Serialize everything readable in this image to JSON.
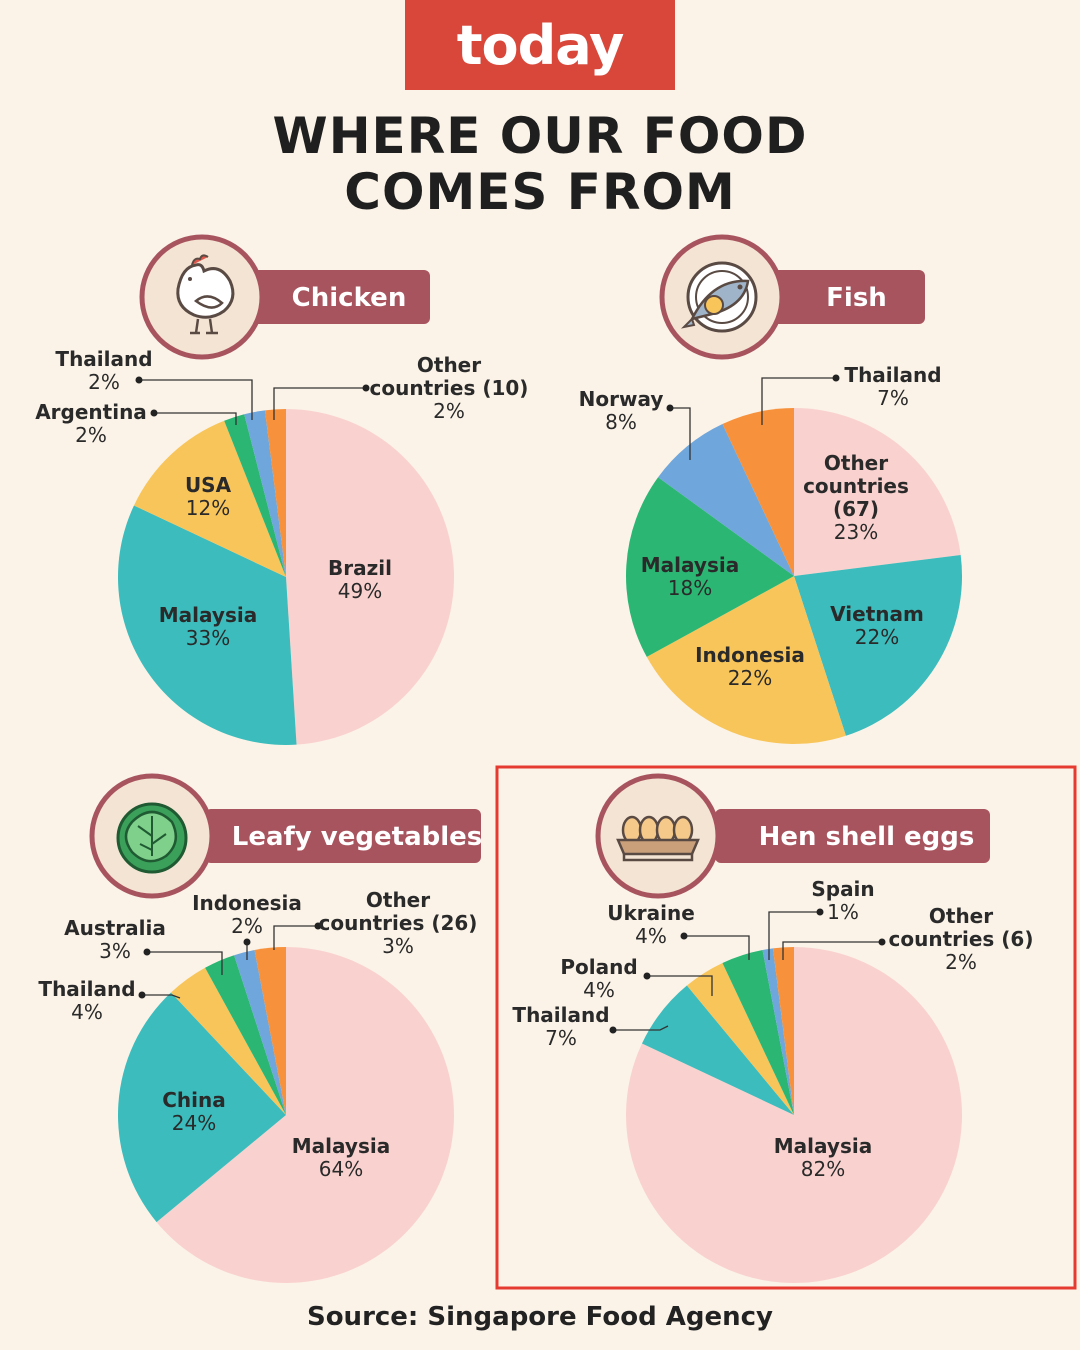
{
  "header": {
    "logo_text": "today",
    "title_line1": "WHERE OUR FOOD",
    "title_line2": "COMES FROM"
  },
  "footer": {
    "source": "Source: Singapore Food Agency"
  },
  "colors": {
    "pink": "#f9d2cf",
    "teal": "#3cbcbc",
    "yellow": "#f8c55a",
    "green": "#2bb673",
    "blue": "#6fa6db",
    "orange": "#f7913c",
    "banner": "#a8545f",
    "highlight": "#e53a2f"
  },
  "chart_data": [
    {
      "type": "pie",
      "title": "Chicken",
      "icon": "chicken-icon",
      "slices": [
        {
          "label": "Brazil",
          "value": 49,
          "pct": "49%",
          "color": "#f9d2cf"
        },
        {
          "label": "Malaysia",
          "value": 33,
          "pct": "33%",
          "color": "#3cbcbc"
        },
        {
          "label": "USA",
          "value": 12,
          "pct": "12%",
          "color": "#f8c55a"
        },
        {
          "label": "Argentina",
          "value": 2,
          "pct": "2%",
          "color": "#2bb673"
        },
        {
          "label": "Thailand",
          "value": 2,
          "pct": "2%",
          "color": "#6fa6db"
        },
        {
          "label_lines": [
            "Other",
            "countries (10)"
          ],
          "value": 2,
          "pct": "2%",
          "color": "#f7913c"
        }
      ]
    },
    {
      "type": "pie",
      "title": "Fish",
      "icon": "fish-plate-icon",
      "slices": [
        {
          "label_lines": [
            "Other",
            "countries",
            "(67)"
          ],
          "value": 23,
          "pct": "23%",
          "color": "#f9d2cf"
        },
        {
          "label": "Vietnam",
          "value": 22,
          "pct": "22%",
          "color": "#3cbcbc"
        },
        {
          "label": "Indonesia",
          "value": 22,
          "pct": "22%",
          "color": "#f8c55a"
        },
        {
          "label": "Malaysia",
          "value": 18,
          "pct": "18%",
          "color": "#2bb673"
        },
        {
          "label": "Norway",
          "value": 8,
          "pct": "8%",
          "color": "#6fa6db"
        },
        {
          "label": "Thailand",
          "value": 7,
          "pct": "7%",
          "color": "#f7913c"
        }
      ]
    },
    {
      "type": "pie",
      "title": "Leafy vegetables",
      "icon": "cabbage-icon",
      "slices": [
        {
          "label": "Malaysia",
          "value": 64,
          "pct": "64%",
          "color": "#f9d2cf"
        },
        {
          "label": "China",
          "value": 24,
          "pct": "24%",
          "color": "#3cbcbc"
        },
        {
          "label": "Thailand",
          "value": 4,
          "pct": "4%",
          "color": "#f8c55a"
        },
        {
          "label": "Australia",
          "value": 3,
          "pct": "3%",
          "color": "#2bb673"
        },
        {
          "label": "Indonesia",
          "value": 2,
          "pct": "2%",
          "color": "#6fa6db"
        },
        {
          "label_lines": [
            "Other",
            "countries (26)"
          ],
          "value": 3,
          "pct": "3%",
          "color": "#f7913c"
        }
      ]
    },
    {
      "type": "pie",
      "title": "Hen shell eggs",
      "icon": "egg-tray-icon",
      "highlighted": true,
      "slices": [
        {
          "label": "Malaysia",
          "value": 82,
          "pct": "82%",
          "color": "#f9d2cf"
        },
        {
          "label": "Thailand",
          "value": 7,
          "pct": "7%",
          "color": "#3cbcbc"
        },
        {
          "label": "Poland",
          "value": 4,
          "pct": "4%",
          "color": "#f8c55a"
        },
        {
          "label": "Ukraine",
          "value": 4,
          "pct": "4%",
          "color": "#2bb673"
        },
        {
          "label": "Spain",
          "value": 1,
          "pct": "1%",
          "color": "#6fa6db"
        },
        {
          "label_lines": [
            "Other",
            "countries (6)"
          ],
          "value": 2,
          "pct": "2%",
          "color": "#f7913c"
        }
      ]
    }
  ]
}
